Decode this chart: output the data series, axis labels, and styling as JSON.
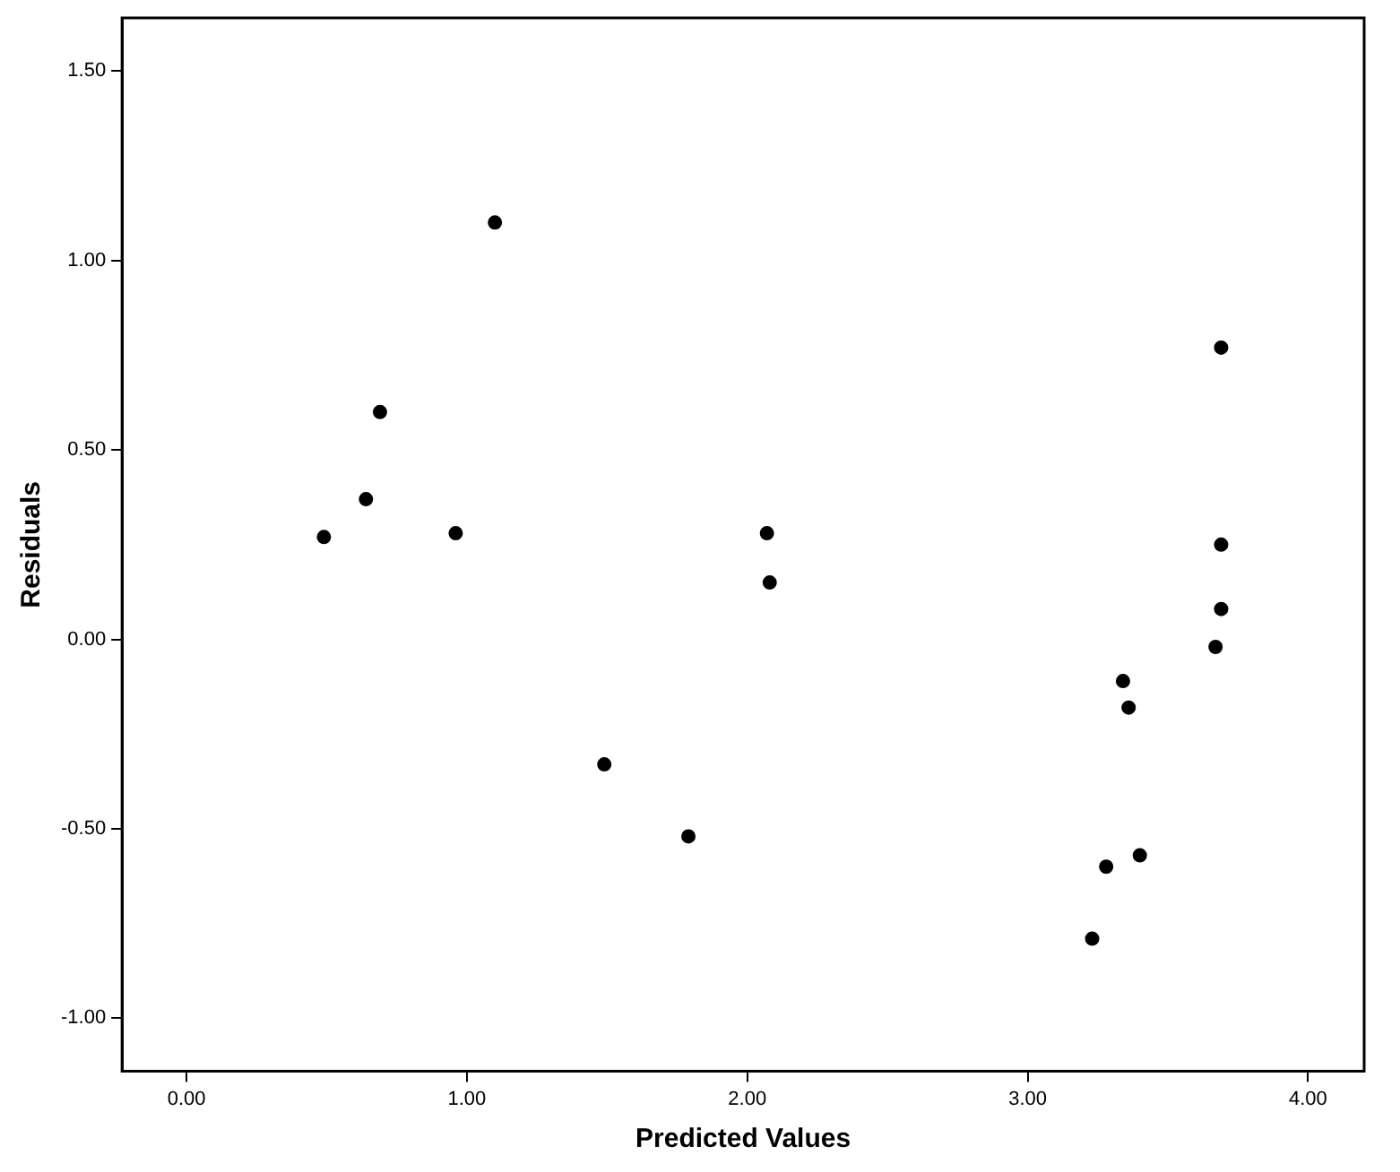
{
  "chart_data": {
    "type": "scatter",
    "xlabel": "Predicted Values",
    "ylabel": "Residuals",
    "x": [
      0.49,
      0.64,
      0.69,
      0.96,
      1.1,
      1.49,
      1.79,
      2.07,
      2.08,
      3.23,
      3.28,
      3.34,
      3.36,
      3.4,
      3.69,
      3.69,
      3.69,
      3.67
    ],
    "series": [
      {
        "color": "#000000",
        "values": [
          0.27,
          0.37,
          0.6,
          0.28,
          1.1,
          -0.33,
          -0.52,
          0.28,
          0.15,
          -0.79,
          -0.6,
          -0.11,
          -0.18,
          -0.57,
          0.77,
          0.25,
          0.08,
          -0.02
        ]
      }
    ],
    "xlim": [
      -0.23,
      4.2
    ],
    "ylim": [
      -1.14,
      1.64
    ],
    "xticks": [
      {
        "value": 0,
        "label": "0.00"
      },
      {
        "value": 1,
        "label": "1.00"
      },
      {
        "value": 2,
        "label": "2.00"
      },
      {
        "value": 3,
        "label": "3.00"
      },
      {
        "value": 4,
        "label": "4.00"
      }
    ],
    "yticks": [
      {
        "value": -1,
        "label": "-1.00"
      },
      {
        "value": -0.5,
        "label": "-0.50"
      },
      {
        "value": 0,
        "label": "0.00"
      },
      {
        "value": 0.5,
        "label": "0.50"
      },
      {
        "value": 1,
        "label": "1.00"
      },
      {
        "value": 1.5,
        "label": "1.50"
      }
    ],
    "grid": false,
    "legend": false,
    "marker": "circle"
  }
}
